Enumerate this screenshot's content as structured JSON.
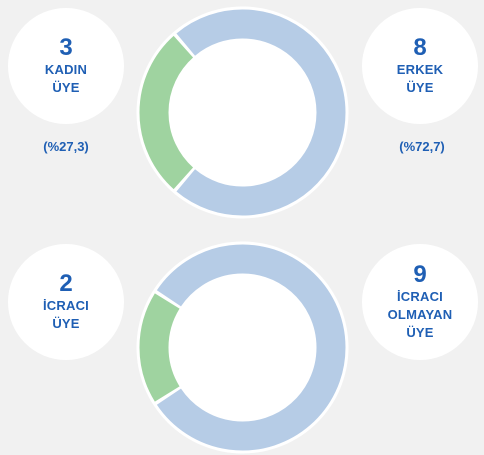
{
  "colors": {
    "accent": "#1f5fb4",
    "seg_major": "#b6cce6",
    "seg_minor": "#9fd3a0",
    "ring_bg": "#ffffff",
    "page_bg": "#f1f1f1"
  },
  "chart_data": [
    {
      "type": "pie",
      "variant": "donut",
      "title": "",
      "slices": [
        {
          "label_lines": [
            "KADIN",
            "ÜYE"
          ],
          "value": 3,
          "percent_label": "(%27,3)",
          "color": "#9fd3a0"
        },
        {
          "label_lines": [
            "ERKEK",
            "ÜYE"
          ],
          "value": 8,
          "percent_label": "(%72,7)",
          "color": "#b6cce6"
        }
      ]
    },
    {
      "type": "pie",
      "variant": "donut",
      "title": "",
      "slices": [
        {
          "label_lines": [
            "İCRACI",
            "ÜYE"
          ],
          "value": 2,
          "color": "#9fd3a0"
        },
        {
          "label_lines": [
            "İCRACI",
            "OLMAYAN",
            "ÜYE"
          ],
          "value": 9,
          "color": "#b6cce6"
        }
      ]
    }
  ]
}
